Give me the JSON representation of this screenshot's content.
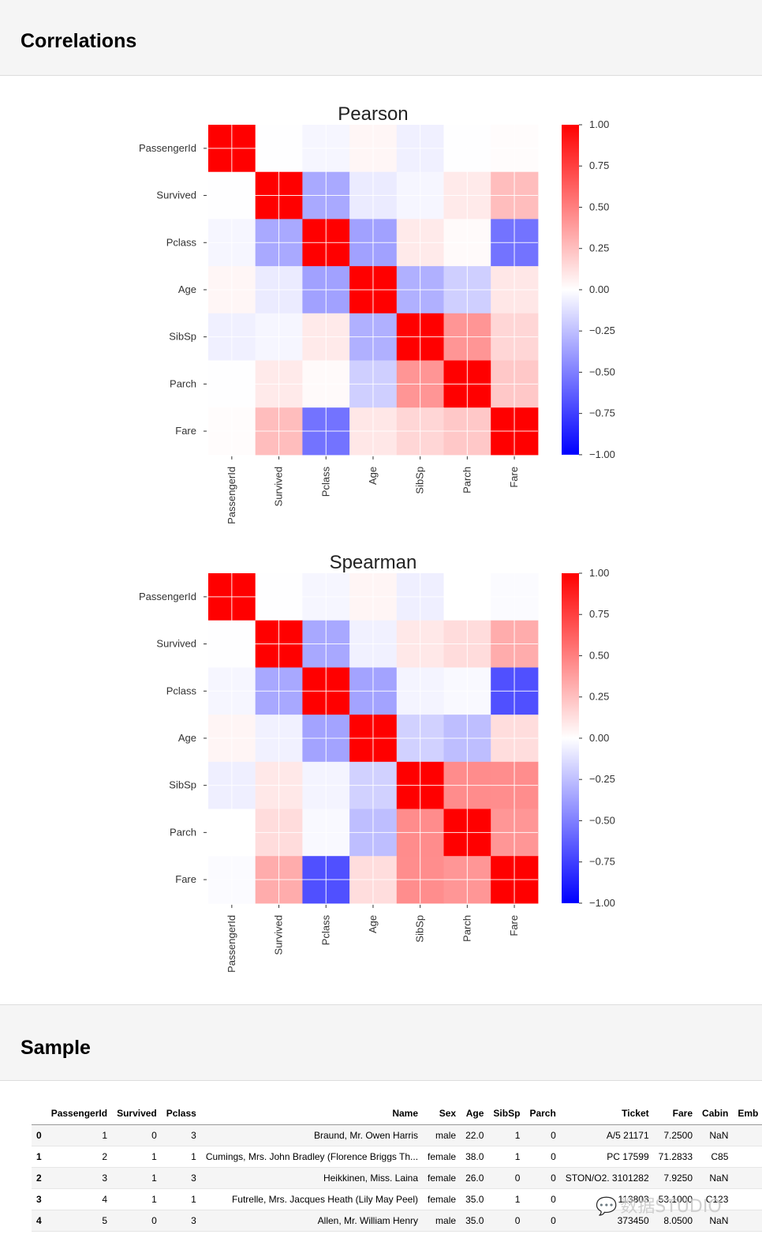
{
  "correlations_section": {
    "title": "Correlations"
  },
  "sample_section": {
    "title": "Sample"
  },
  "chart_data": [
    {
      "type": "heatmap",
      "title": "Pearson",
      "xlabels": [
        "PassengerId",
        "Survived",
        "Pclass",
        "Age",
        "SibSp",
        "Parch",
        "Fare"
      ],
      "ylabels": [
        "PassengerId",
        "Survived",
        "Pclass",
        "Age",
        "SibSp",
        "Parch",
        "Fare"
      ],
      "values": [
        [
          1.0,
          -0.005,
          -0.035,
          0.037,
          -0.058,
          -0.002,
          0.013
        ],
        [
          -0.005,
          1.0,
          -0.338,
          -0.077,
          -0.035,
          0.082,
          0.257
        ],
        [
          -0.035,
          -0.338,
          1.0,
          -0.369,
          0.083,
          0.018,
          -0.549
        ],
        [
          0.037,
          -0.077,
          -0.369,
          1.0,
          -0.308,
          -0.189,
          0.096
        ],
        [
          -0.058,
          -0.035,
          0.083,
          -0.308,
          1.0,
          0.415,
          0.16
        ],
        [
          -0.002,
          0.082,
          0.018,
          -0.189,
          0.415,
          1.0,
          0.216
        ],
        [
          0.013,
          0.257,
          -0.549,
          0.096,
          0.16,
          0.216,
          1.0
        ]
      ],
      "colorbar": {
        "min": -1.0,
        "max": 1.0,
        "ticks": [
          "1.00",
          "0.75",
          "0.50",
          "0.25",
          "0.00",
          "−0.25",
          "−0.50",
          "−0.75",
          "−1.00"
        ]
      },
      "colormap": {
        "low": "#0000ff",
        "mid": "#ffffff",
        "high": "#ff0000"
      }
    },
    {
      "type": "heatmap",
      "title": "Spearman",
      "xlabels": [
        "PassengerId",
        "Survived",
        "Pclass",
        "Age",
        "SibSp",
        "Parch",
        "Fare"
      ],
      "ylabels": [
        "PassengerId",
        "Survived",
        "Pclass",
        "Age",
        "SibSp",
        "Parch",
        "Fare"
      ],
      "values": [
        [
          1.0,
          -0.005,
          -0.034,
          0.041,
          -0.061,
          -0.001,
          -0.014
        ],
        [
          -0.005,
          1.0,
          -0.34,
          -0.053,
          0.089,
          0.138,
          0.324
        ],
        [
          -0.034,
          -0.34,
          1.0,
          -0.362,
          -0.044,
          -0.023,
          -0.688
        ],
        [
          0.041,
          -0.053,
          -0.362,
          1.0,
          -0.182,
          -0.254,
          0.135
        ],
        [
          -0.061,
          0.089,
          -0.044,
          -0.182,
          1.0,
          0.45,
          0.448
        ],
        [
          -0.001,
          0.138,
          -0.023,
          -0.254,
          0.45,
          1.0,
          0.41
        ],
        [
          -0.014,
          0.324,
          -0.688,
          0.135,
          0.448,
          0.41,
          1.0
        ]
      ],
      "colorbar": {
        "min": -1.0,
        "max": 1.0,
        "ticks": [
          "1.00",
          "0.75",
          "0.50",
          "0.25",
          "0.00",
          "−0.25",
          "−0.50",
          "−0.75",
          "−1.00"
        ]
      },
      "colormap": {
        "low": "#0000ff",
        "mid": "#ffffff",
        "high": "#ff0000"
      }
    }
  ],
  "sample_table": {
    "columns": [
      "",
      "PassengerId",
      "Survived",
      "Pclass",
      "Name",
      "Sex",
      "Age",
      "SibSp",
      "Parch",
      "Ticket",
      "Fare",
      "Cabin",
      "Emb"
    ],
    "rows": [
      [
        "0",
        "1",
        "0",
        "3",
        "Braund, Mr. Owen Harris",
        "male",
        "22.0",
        "1",
        "0",
        "A/5 21171",
        "7.2500",
        "NaN",
        ""
      ],
      [
        "1",
        "2",
        "1",
        "1",
        "Cumings, Mrs. John Bradley (Florence Briggs Th...",
        "female",
        "38.0",
        "1",
        "0",
        "PC 17599",
        "71.2833",
        "C85",
        ""
      ],
      [
        "2",
        "3",
        "1",
        "3",
        "Heikkinen, Miss. Laina",
        "female",
        "26.0",
        "0",
        "0",
        "STON/O2. 3101282",
        "7.9250",
        "NaN",
        ""
      ],
      [
        "3",
        "4",
        "1",
        "1",
        "Futrelle, Mrs. Jacques Heath (Lily May Peel)",
        "female",
        "35.0",
        "1",
        "0",
        "113803",
        "53.1000",
        "C123",
        ""
      ],
      [
        "4",
        "5",
        "0",
        "3",
        "Allen, Mr. William Henry",
        "male",
        "35.0",
        "0",
        "0",
        "373450",
        "8.0500",
        "NaN",
        ""
      ]
    ]
  },
  "watermark": {
    "text": "数据STUDIO",
    "icon": "wechat-icon"
  }
}
